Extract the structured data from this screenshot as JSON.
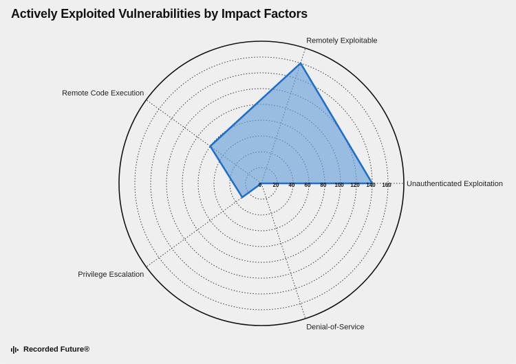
{
  "title": "Actively Exploited Vulnerabilities by Impact Factors",
  "brand": {
    "name": "Recorded Future®",
    "icon": "recorded-future-logo-icon"
  },
  "chart_data": {
    "type": "radar",
    "axes": [
      "Unauthenticated Exploitation",
      "Remotely Exploitable",
      "Remote Code Execution",
      "Privilege Escalation",
      "Denial-of-Service"
    ],
    "values": [
      140,
      160,
      80,
      30,
      0
    ],
    "ticks": [
      0,
      20,
      40,
      60,
      80,
      100,
      120,
      140,
      160
    ],
    "rmax": 180,
    "fill_color": "#6a9fd8",
    "line_color": "#1f6fc8",
    "grid": true
  }
}
